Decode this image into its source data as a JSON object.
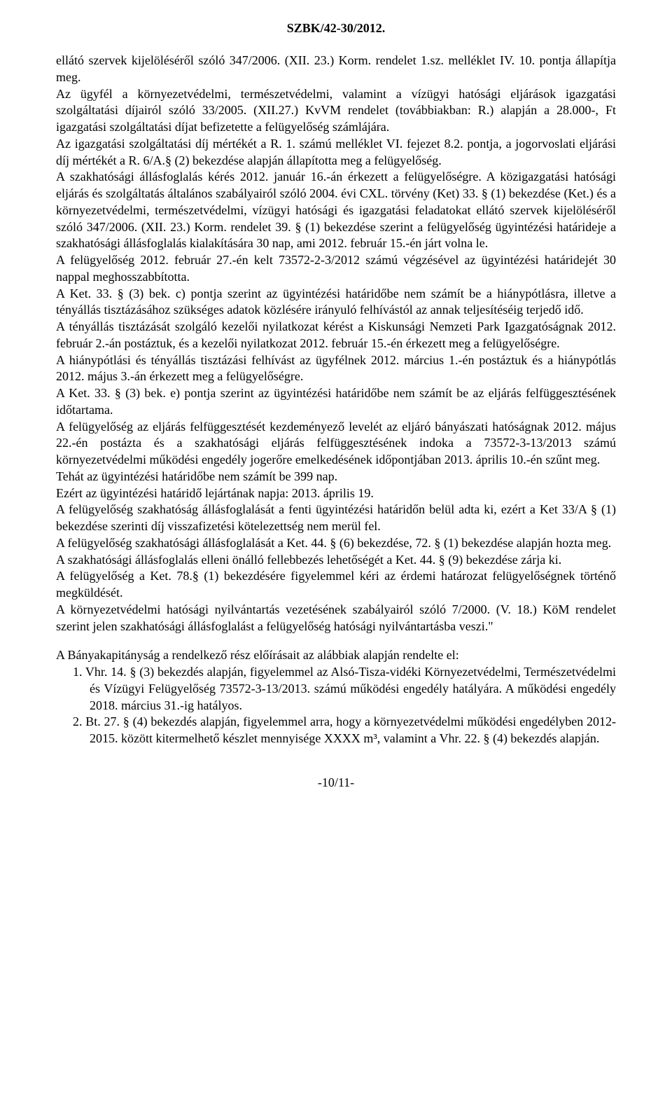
{
  "header": {
    "case_number": "SZBK/42-30/2012."
  },
  "content": {
    "p1": "ellátó szervek kijelöléséről szóló 347/2006. (XII. 23.) Korm. rendelet 1.sz. melléklet IV. 10. pontja állapítja meg.",
    "p2": "Az ügyfél a környezetvédelmi, természetvédelmi, valamint a vízügyi hatósági eljárások igazgatási szolgáltatási díjairól szóló 33/2005. (XII.27.) KvVM rendelet (továbbiakban: R.) alapján a 28.000-, Ft igazgatási szolgáltatási díjat befizetette a felügyelőség számlájára.",
    "p3": "Az igazgatási szolgáltatási díj mértékét a R. 1. számú melléklet VI. fejezet 8.2. pontja, a jogorvoslati eljárási díj mértékét a R. 6/A.§ (2) bekezdése alapján állapította meg a felügyelőség.",
    "p4": "A szakhatósági állásfoglalás kérés 2012. január 16.-án érkezett a felügyelőségre. A közigazgatási hatósági eljárás és szolgáltatás általános szabályairól szóló 2004. évi CXL. törvény (Ket) 33. § (1) bekezdése (Ket.) és a környezetvédelmi, természetvédelmi, vízügyi hatósági és igazgatási feladatokat ellátó szervek kijelöléséről szóló 347/2006. (XII. 23.) Korm. rendelet 39. § (1) bekezdése szerint a felügyelőség ügyintézési határideje a szakhatósági állásfoglalás kialakítására 30 nap, ami 2012. február 15.-én járt volna le.",
    "p5": "A felügyelőség 2012. február 27.-én kelt 73572-2-3/2012 számú végzésével az ügyintézési határidejét 30 nappal meghosszabbította.",
    "p6": "A Ket. 33. § (3) bek. c) pontja szerint az ügyintézési határidőbe nem számít be a hiánypótlásra, illetve a tényállás tisztázásához szükséges adatok közlésére irányuló felhívástól az annak teljesítéséig terjedő idő.",
    "p7": "A tényállás tisztázását szolgáló kezelői nyilatkozat kérést a Kiskunsági Nemzeti Park Igazgatóságnak 2012. február 2.-án postáztuk, és a kezelői nyilatkozat 2012. február 15.-én érkezett meg a felügyelőségre.",
    "p8": "A hiánypótlási és tényállás tisztázási felhívást az ügyfélnek 2012. március 1.-én postáztuk és a hiánypótlás 2012. május 3.-án érkezett meg a felügyelőségre.",
    "p9": "A Ket. 33. § (3) bek. e) pontja szerint az ügyintézési határidőbe nem számít be az eljárás felfüggesztésének időtartama.",
    "p10": "A felügyelőség az eljárás felfüggesztését kezdeményező levelét az eljáró bányászati hatóságnak 2012. május 22.-én postázta és a szakhatósági eljárás felfüggesztésének indoka a 73572-3-13/2013 számú környezetvédelmi működési engedély jogerőre emelkedésének időpontjában 2013. április 10.-én szűnt meg.",
    "p11": "Tehát az ügyintézési határidőbe nem számít be 399 nap.",
    "p12": "Ezért az ügyintézési határidő lejártának napja: 2013. április 19.",
    "p13": "A felügyelőség szakhatóság állásfoglalását a fenti ügyintézési határidőn belül adta ki, ezért a Ket 33/A § (1) bekezdése szerinti díj visszafizetési kötelezettség nem merül fel.",
    "p14": "A felügyelőség szakhatósági állásfoglalását a Ket. 44. § (6) bekezdése, 72. § (1) bekezdése alapján hozta meg.",
    "p15": "A szakhatósági állásfoglalás elleni önálló fellebbezés lehetőségét a Ket. 44. § (9) bekezdése zárja ki.",
    "p16": "A felügyelőség a Ket. 78.§ (1) bekezdésére figyelemmel kéri az érdemi határozat felügyelőségnek történő megküldését.",
    "p17": "A környezetvédelmi hatósági nyilvántartás vezetésének szabályairól szóló 7/2000. (V. 18.) KöM rendelet szerint jelen szakhatósági állásfoglalást a felügyelőség hatósági nyilvántartásba veszi.\"",
    "p18": "A Bányakapitányság a rendelkező rész előírásait az alábbiak alapján rendelte el:",
    "li1": "1.  Vhr. 14. § (3) bekezdés alapján, figyelemmel az Alsó-Tisza-vidéki Környezetvédelmi, Természetvédelmi és Vízügyi Felügyelőség 73572-3-13/2013. számú működési engedély hatályára. A működési engedély 2018. március 31.-ig hatályos.",
    "li2": "2.  Bt. 27. § (4) bekezdés alapján, figyelemmel arra, hogy a környezetvédelmi működési engedélyben 2012-2015. között kitermelhető készlet mennyisége XXXX m³, valamint a Vhr. 22. § (4) bekezdés alapján."
  },
  "footer": {
    "page_number": "-10/11-"
  }
}
